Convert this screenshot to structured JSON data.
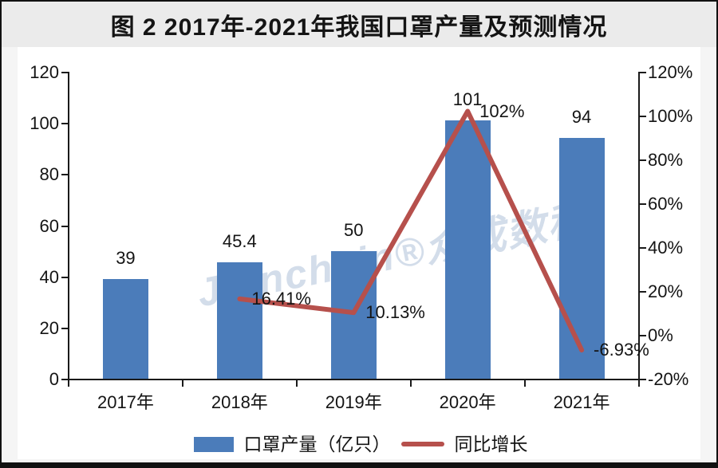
{
  "title": "图 2 2017年-2021年我国口罩产量及预测情况",
  "watermark": "Joinchain®众成数科",
  "legend": {
    "bar_label": "口罩产量（亿只）",
    "line_label": "同比增长"
  },
  "colors": {
    "bar": "#4b7cba",
    "line": "#b6504c",
    "axis": "#1a1a1a",
    "title_band": "#ebebeb",
    "card_bg": "#ffffff",
    "page_bg": "#f5f5f5",
    "watermark": "rgba(167,187,214,0.5)"
  },
  "chart_data": {
    "type": "bar+line",
    "title": "图 2 2017年-2021年我国口罩产量及预测情况",
    "categories": [
      "2017年",
      "2018年",
      "2019年",
      "2020年",
      "2021年"
    ],
    "series": [
      {
        "name": "口罩产量（亿只）",
        "type": "bar",
        "axis": "left",
        "values": [
          39,
          45.4,
          50,
          101,
          94
        ],
        "labels": [
          "39",
          "45.4",
          "50",
          "101",
          "94"
        ],
        "color": "#4b7cba"
      },
      {
        "name": "同比增长",
        "type": "line",
        "axis": "right",
        "values": [
          null,
          16.41,
          10.13,
          102,
          -6.93
        ],
        "labels": [
          null,
          "16.41%",
          "10.13%",
          "102%",
          "-6.93%"
        ],
        "color": "#b6504c"
      }
    ],
    "y_left": {
      "min": 0,
      "max": 120,
      "tick_values": [
        0,
        20,
        40,
        60,
        80,
        100,
        120
      ],
      "tick_labels": [
        "0",
        "20",
        "40",
        "60",
        "80",
        "100",
        "120"
      ]
    },
    "y_right": {
      "min": -20,
      "max": 120,
      "tick_values": [
        -20,
        0,
        20,
        40,
        60,
        80,
        100,
        120
      ],
      "tick_labels": [
        "-20%",
        "0%",
        "20%",
        "40%",
        "60%",
        "80%",
        "100%",
        "120%"
      ]
    },
    "grid": false,
    "legend_position": "bottom"
  }
}
